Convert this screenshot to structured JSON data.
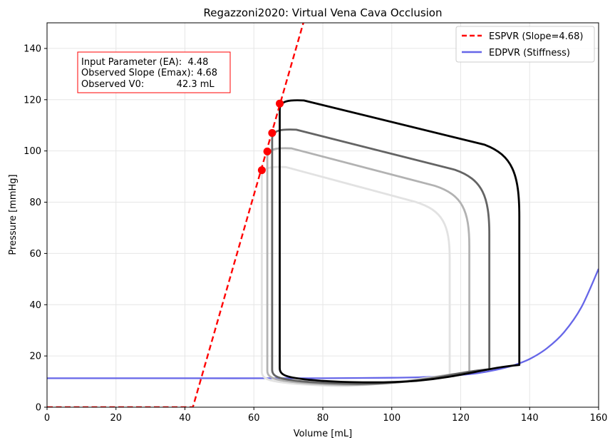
{
  "chart_data": {
    "type": "line",
    "title": "Regazzoni2020: Virtual Vena Cava Occlusion",
    "xlabel": "Volume [mL]",
    "ylabel": "Pressure [mmHg]",
    "xlim": [
      0,
      160
    ],
    "ylim": [
      0,
      150
    ],
    "xticks": [
      "0",
      "20",
      "40",
      "60",
      "80",
      "100",
      "120",
      "140",
      "160"
    ],
    "yticks": [
      "0",
      "20",
      "40",
      "60",
      "80",
      "100",
      "120",
      "140"
    ],
    "grid": true,
    "legend_position": "top-right",
    "annotation": {
      "lines": [
        "Input Parameter (EA):  4.48",
        "Observed Slope (Emax): 4.68",
        "Observed V0:           42.3 mL"
      ],
      "border_color": "#ff0000"
    },
    "series": [
      {
        "name": "ESPVR (Slope=4.68)",
        "kind": "espvr",
        "color": "#ff0000",
        "dash": "dashed",
        "slope": 4.68,
        "v0": 42.3
      },
      {
        "name": "EDPVR (Stiffness)",
        "kind": "edpvr",
        "color": "#6666e8",
        "x": [
          0,
          40,
          80,
          100,
          110,
          120,
          125,
          130,
          135,
          140,
          145,
          150,
          155,
          160
        ],
        "y": [
          11.3,
          11.3,
          11.3,
          11.5,
          11.8,
          12.6,
          13.3,
          14.5,
          16.2,
          18.8,
          23,
          29.3,
          39,
          54
        ]
      }
    ],
    "pv_loops": [
      {
        "color": "#000000",
        "ved": 137,
        "ves": 67.5,
        "ped": 16.5,
        "pes": 118.5,
        "pmax": 120,
        "pmin": 9.8
      },
      {
        "color": "#646464",
        "ved": 128.3,
        "ves": 65.3,
        "ped": 14.8,
        "pes": 107,
        "pmax": 108.6,
        "pmin": 9.2
      },
      {
        "color": "#b2b2b2",
        "ved": 122.5,
        "ves": 63.9,
        "ped": 13.6,
        "pes": 99.8,
        "pmax": 101.3,
        "pmin": 8.8
      },
      {
        "color": "#e2e2e2",
        "ved": 116.8,
        "ves": 62.3,
        "ped": 12.5,
        "pes": 92.5,
        "pmax": 94,
        "pmin": 8.4
      }
    ],
    "end_systolic_points": {
      "name": "",
      "color": "#ff0000",
      "x": [
        67.5,
        65.3,
        63.9,
        62.3
      ],
      "y": [
        118.5,
        107,
        99.8,
        92.5
      ]
    }
  }
}
